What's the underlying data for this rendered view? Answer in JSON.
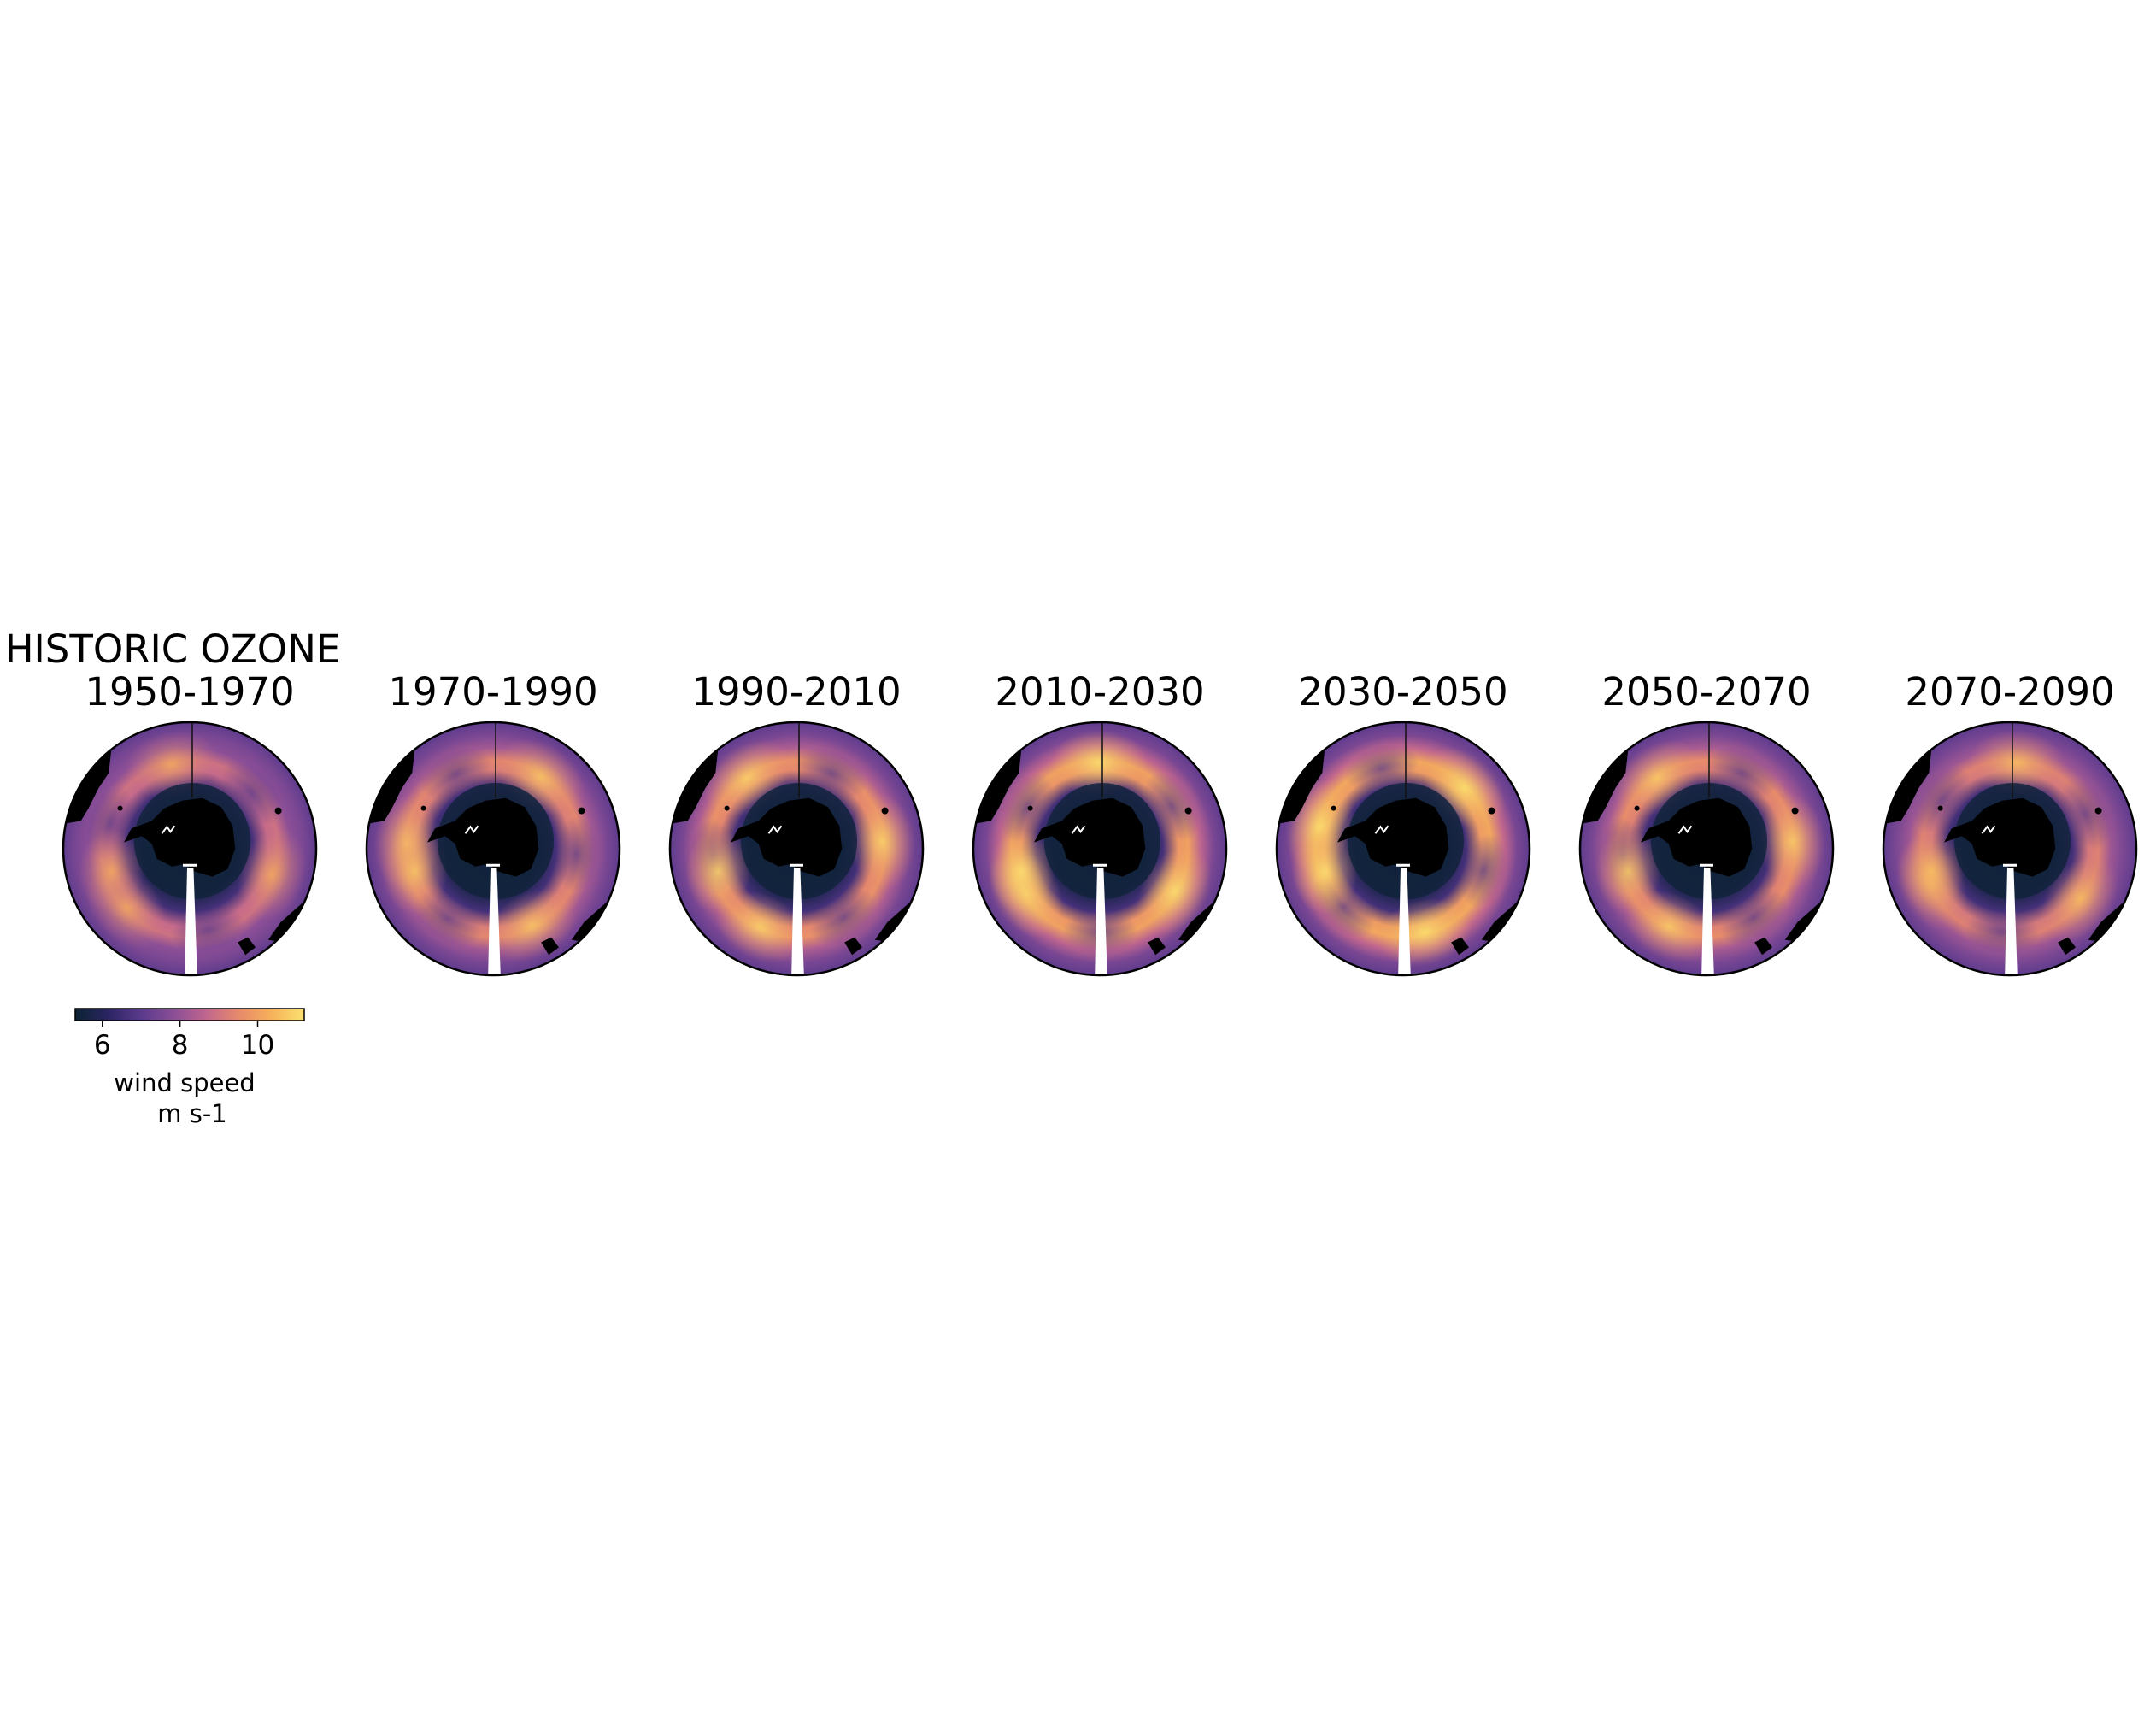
{
  "figure": {
    "panels": [
      {
        "title_lines": [
          "HISTORIC OZONE",
          "1950-1970"
        ],
        "jet_strength": 0.62,
        "jet_phase": 0.3
      },
      {
        "title_lines": [
          "1970-1990"
        ],
        "jet_strength": 0.7,
        "jet_phase": 1.1
      },
      {
        "title_lines": [
          "1990-2010"
        ],
        "jet_strength": 0.74,
        "jet_phase": 2.0
      },
      {
        "title_lines": [
          "2010-2030"
        ],
        "jet_strength": 0.8,
        "jet_phase": 2.6
      },
      {
        "title_lines": [
          "2030-2050"
        ],
        "jet_strength": 0.82,
        "jet_phase": 3.4
      },
      {
        "title_lines": [
          "2050-2070"
        ],
        "jet_strength": 0.72,
        "jet_phase": 4.1
      },
      {
        "title_lines": [
          "2070-2090"
        ],
        "jet_strength": 0.68,
        "jet_phase": 4.8
      }
    ],
    "colorbar": {
      "ticks": [
        "6",
        "8",
        "10"
      ],
      "tick_values": [
        6,
        8,
        10
      ],
      "range": [
        5.3,
        11.2
      ],
      "label_lines": [
        "wind speed",
        "m s-1"
      ],
      "colormap": [
        "#0b2332",
        "#2b2463",
        "#5a3a8c",
        "#8a4e96",
        "#c0668e",
        "#e78a6b",
        "#f6b15a",
        "#fbe26f"
      ]
    },
    "colors": {
      "land": "#000000",
      "missing": "#ffffff"
    }
  }
}
